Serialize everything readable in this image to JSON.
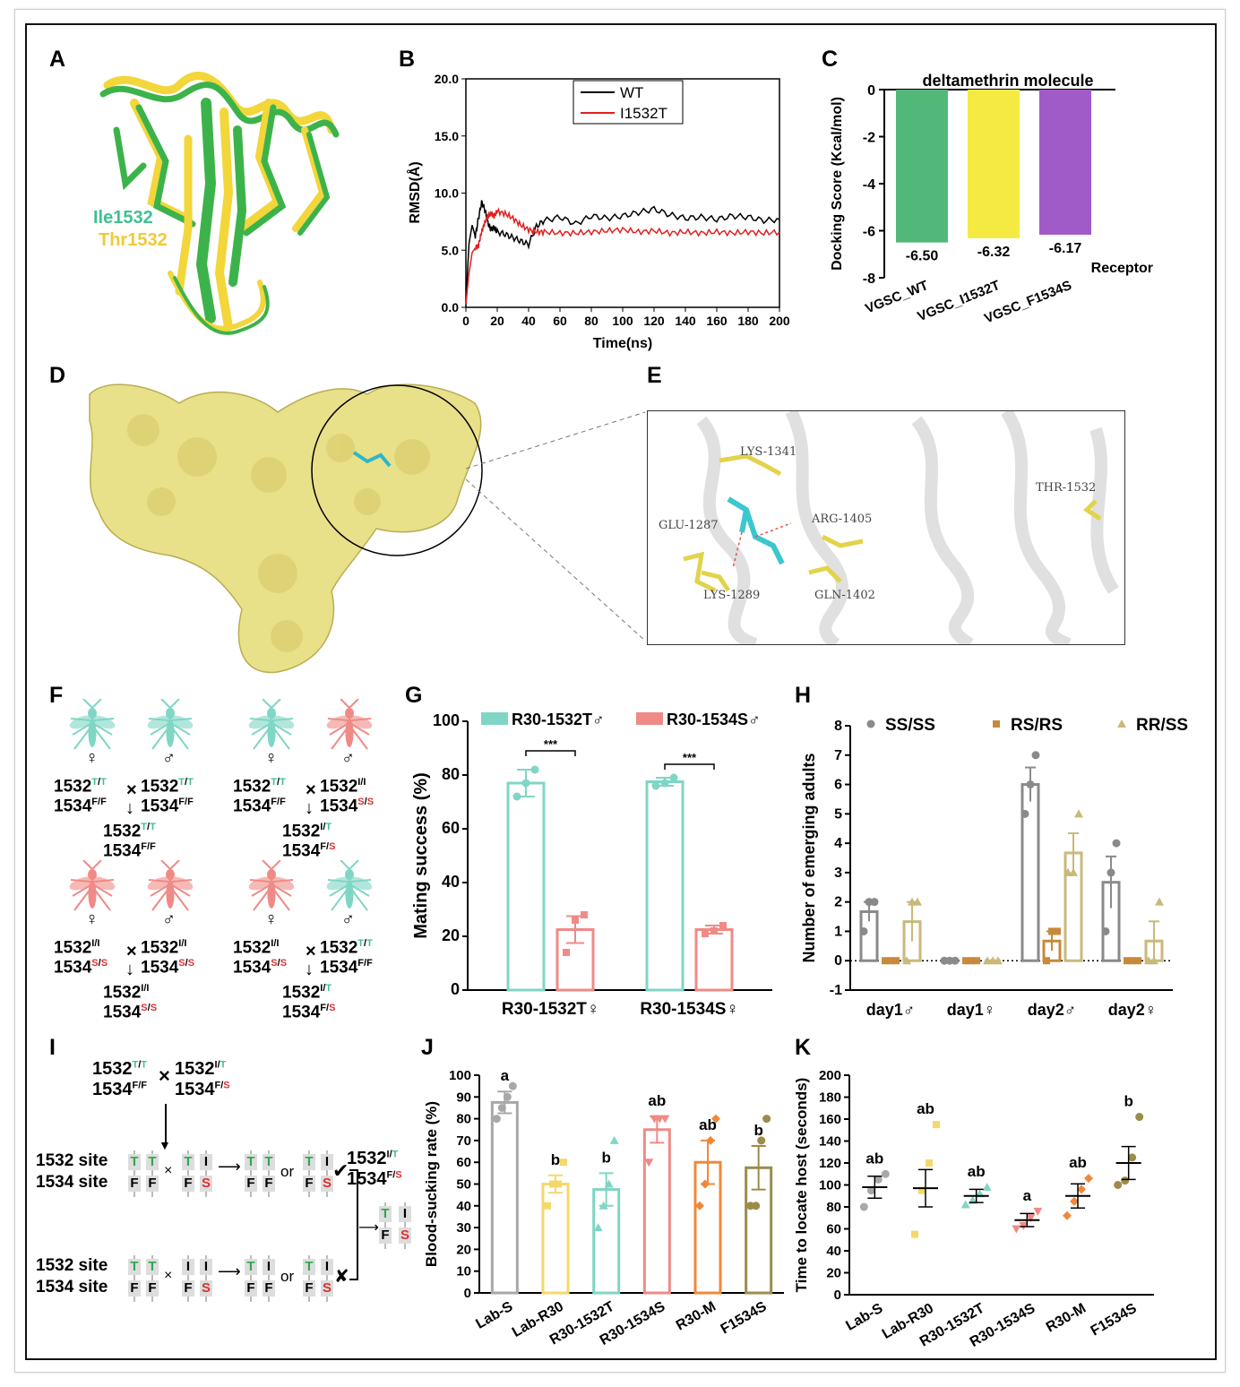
{
  "panel_letters": {
    "A": "A",
    "B": "B",
    "C": "C",
    "D": "D",
    "E": "E",
    "F": "F",
    "G": "G",
    "H": "H",
    "I": "I",
    "J": "J",
    "K": "K"
  },
  "panelA": {
    "label_ile": "Ile1532",
    "label_thr": "Thr1532",
    "colors": {
      "green": "#3cb34a",
      "yellow": "#f2d63a",
      "ile_text": "#3ec28f",
      "thr_text": "#f0c93a"
    }
  },
  "panelD": {
    "surface_color": "#e9e08a"
  },
  "panelE": {
    "residues": {
      "lys1341": "LYS-1341",
      "glu1287": "GLU-1287",
      "arg1405": "ARG-1405",
      "lys1289": "LYS-1289",
      "gln1402": "GLN-1402",
      "thr1532": "THR-1532"
    }
  },
  "panelF": {
    "crosses": [
      {
        "f_top": "1532",
        "f_top_sup": "T/T",
        "f_bot": "1534",
        "f_bot_sup": "F/F",
        "m_top": "1532",
        "m_top_sup": "T/T",
        "m_bot": "1534",
        "m_bot_sup": "F/F",
        "o_top": "1532",
        "o_top_sup": "T/T",
        "o_bot": "1534",
        "o_bot_sup": "F/F"
      },
      {
        "f_top": "1532",
        "f_top_sup": "T/T",
        "f_bot": "1534",
        "f_bot_sup": "F/F",
        "m_top": "1532",
        "m_top_sup": "I/I",
        "m_bot": "1534",
        "m_bot_sup": "S/S",
        "o_top": "1532",
        "o_top_sup": "I/T",
        "o_bot": "1534",
        "o_bot_sup": "F/S"
      },
      {
        "f_top": "1532",
        "f_top_sup": "I/I",
        "f_bot": "1534",
        "f_bot_sup": "S/S",
        "m_top": "1532",
        "m_top_sup": "I/I",
        "m_bot": "1534",
        "m_bot_sup": "S/S",
        "o_top": "1532",
        "o_top_sup": "I/I",
        "o_bot": "1534",
        "o_bot_sup": "S/S"
      },
      {
        "f_top": "1532",
        "f_top_sup": "I/I",
        "f_bot": "1534",
        "f_bot_sup": "S/S",
        "m_top": "1532",
        "m_top_sup": "T/T",
        "m_bot": "1534",
        "m_bot_sup": "F/F",
        "o_top": "1532",
        "o_top_sup": "I/T",
        "o_bot": "1534",
        "o_bot_sup": "F/S"
      }
    ],
    "times": "×",
    "female": "♀",
    "male": "♂",
    "arrow": "↓"
  },
  "panelI": {
    "top_left_top": "1532",
    "top_left_top_sup": "T/T",
    "top_left_bot": "1534",
    "top_left_bot_sup": "F/F",
    "top_right_top": "1532",
    "top_right_top_sup": "I/T",
    "top_right_bot": "1534",
    "top_right_bot_sup": "F/S",
    "times": "×",
    "site1532": "1532 site",
    "site1534": "1534 site",
    "row1_top": [
      "T",
      "T",
      "T",
      "I",
      "T",
      "T",
      "T",
      "I"
    ],
    "row1_bot": [
      "F",
      "F",
      "F",
      "S",
      "F",
      "F",
      "F",
      "S"
    ],
    "row2_top": [
      "T",
      "T",
      "I",
      "I",
      "T",
      "I",
      "T",
      "I"
    ],
    "row2_bot": [
      "F",
      "F",
      "F",
      "S",
      "F",
      "F",
      "F",
      "S"
    ],
    "or": "or",
    "check": "✔",
    "cross": "✘",
    "result_top": "1532",
    "result_top_sup": "I/T",
    "result_bot": "1534",
    "result_bot_sup": "F/S",
    "final_top": [
      "T",
      "I"
    ],
    "final_bot": [
      "F",
      "S"
    ]
  },
  "chart_data": [
    {
      "id": "B",
      "type": "line",
      "xlabel": "Time(ns)",
      "ylabel": "RMSD(Å)",
      "xlim": [
        0,
        200
      ],
      "ylim": [
        0,
        20
      ],
      "x_ticks": [
        "0",
        "20",
        "40",
        "60",
        "80",
        "100",
        "120",
        "140",
        "160",
        "180",
        "200"
      ],
      "y_ticks": [
        "0.0",
        "5.0",
        "10.0",
        "15.0",
        "20.0"
      ],
      "series": [
        {
          "name": "WT",
          "color": "#000000",
          "x": [
            0,
            2,
            4,
            6,
            8,
            10,
            12,
            14,
            16,
            18,
            20,
            25,
            30,
            35,
            40,
            45,
            50,
            60,
            70,
            80,
            90,
            100,
            110,
            120,
            130,
            140,
            150,
            160,
            170,
            180,
            190,
            200
          ],
          "y": [
            0.5,
            5.6,
            7.2,
            6.2,
            7.8,
            9.2,
            8.6,
            7.4,
            6.8,
            7.0,
            6.6,
            6.4,
            6.1,
            5.8,
            5.5,
            7.1,
            7.6,
            7.9,
            7.3,
            8.0,
            7.8,
            8.0,
            8.3,
            8.6,
            8.1,
            7.8,
            7.9,
            7.7,
            8.0,
            7.9,
            7.6,
            7.7
          ]
        },
        {
          "name": "I1532T",
          "color": "#e02020",
          "x": [
            0,
            2,
            4,
            6,
            8,
            10,
            12,
            14,
            16,
            18,
            20,
            25,
            30,
            35,
            40,
            45,
            50,
            60,
            70,
            80,
            90,
            100,
            110,
            120,
            130,
            140,
            150,
            160,
            170,
            180,
            190,
            200
          ],
          "y": [
            0.3,
            3.0,
            4.8,
            5.2,
            5.4,
            6.6,
            7.4,
            8.0,
            8.2,
            8.0,
            8.4,
            8.2,
            7.8,
            7.2,
            6.8,
            6.6,
            6.6,
            6.5,
            6.5,
            6.6,
            6.7,
            6.8,
            6.6,
            6.7,
            6.5,
            6.6,
            6.5,
            6.6,
            6.5,
            6.6,
            6.5,
            6.6
          ]
        }
      ]
    },
    {
      "id": "C",
      "type": "bar",
      "title": "deltamethrin molecule",
      "ylabel": "Docking Score (Kcal/mol)",
      "xlabel": "Receptor",
      "ylim": [
        -8,
        0
      ],
      "y_ticks": [
        "0",
        "-2",
        "-4",
        "-6",
        "-8"
      ],
      "categories": [
        "VGSC_WT",
        "VGSC_I1532T",
        "VGSC_F1534S"
      ],
      "values": [
        -6.5,
        -6.32,
        -6.17
      ],
      "value_labels": [
        "-6.50",
        "-6.32",
        "-6.17"
      ],
      "colors": [
        "#52b87a",
        "#f5ea42",
        "#a05bc8"
      ]
    },
    {
      "id": "G",
      "type": "bar",
      "ylabel": "Mating success (%)",
      "ylim": [
        0,
        100
      ],
      "y_ticks": [
        "0",
        "20",
        "40",
        "60",
        "80",
        "100"
      ],
      "categories": [
        "R30-1532T♀",
        "R30-1534S♀"
      ],
      "series": [
        {
          "name": "R30-1532T♂",
          "color": "#7fd6c4",
          "values": [
            77,
            77.5
          ],
          "err": [
            5,
            1.5
          ],
          "points": [
            [
              72,
              77,
              82
            ],
            [
              76,
              77,
              79
            ]
          ]
        },
        {
          "name": "R30-1534S♂",
          "color": "#f08a86",
          "values": [
            22.5,
            22.5
          ],
          "err": [
            5,
            1.5
          ],
          "points": [
            [
              14,
              26,
              28
            ],
            [
              21,
              22,
              24
            ]
          ]
        }
      ],
      "sig": [
        "***",
        "***"
      ]
    },
    {
      "id": "H",
      "type": "bar",
      "ylabel": "Number of emerging adults",
      "ylim": [
        -1,
        8
      ],
      "y_ticks": [
        "-1",
        "0",
        "1",
        "2",
        "3",
        "4",
        "5",
        "6",
        "7",
        "8"
      ],
      "categories": [
        "day1♂",
        "day1♀",
        "day2♂",
        "day2♀"
      ],
      "series": [
        {
          "name": "SS/SS",
          "color": "#8a8a8a",
          "marker": "circle",
          "values": [
            1.67,
            0,
            6,
            2.67
          ],
          "err": [
            0.33,
            0,
            0.58,
            0.88
          ],
          "points": [
            [
              1,
              2,
              2
            ],
            [
              0,
              0,
              0
            ],
            [
              5,
              6,
              7
            ],
            [
              1,
              3,
              4
            ]
          ]
        },
        {
          "name": "RS/RS",
          "color": "#c8893a",
          "marker": "square",
          "values": [
            0,
            0,
            0.67,
            0
          ],
          "err": [
            0,
            0,
            0.33,
            0
          ],
          "points": [
            [
              0,
              0,
              0
            ],
            [
              0,
              0,
              0
            ],
            [
              0,
              1,
              1
            ],
            [
              0,
              0,
              0
            ]
          ]
        },
        {
          "name": "RR/SS",
          "color": "#c9b97a",
          "marker": "triangle",
          "values": [
            1.33,
            0,
            3.67,
            0.67
          ],
          "err": [
            0.67,
            0,
            0.67,
            0.67
          ],
          "points": [
            [
              0,
              2,
              2
            ],
            [
              0,
              0,
              0
            ],
            [
              3,
              3,
              5
            ],
            [
              0,
              0,
              2
            ]
          ]
        }
      ]
    },
    {
      "id": "J",
      "type": "bar",
      "ylabel": "Blood-sucking rate (%)",
      "ylim": [
        0,
        100
      ],
      "y_ticks": [
        "0",
        "10",
        "20",
        "30",
        "40",
        "50",
        "60",
        "70",
        "80",
        "90",
        "100"
      ],
      "categories": [
        "Lab-S",
        "Lab-R30",
        "R30-1532T",
        "R30-1534S",
        "R30-M",
        "F1534S"
      ],
      "values": [
        87.5,
        50,
        47.5,
        75,
        60,
        57.5
      ],
      "err": [
        5,
        4,
        7.5,
        6,
        10,
        10
      ],
      "letters": [
        "a",
        "b",
        "b",
        "ab",
        "ab",
        "b"
      ],
      "colors": [
        "#a8a8a8",
        "#f5d86a",
        "#7fd6c4",
        "#f08a86",
        "#f0883a",
        "#9c8b4a"
      ],
      "points": [
        [
          80,
          85,
          90,
          95
        ],
        [
          40,
          50,
          50,
          60
        ],
        [
          30,
          40,
          50,
          70
        ],
        [
          60,
          80,
          80,
          80
        ],
        [
          40,
          50,
          70,
          80
        ],
        [
          40,
          40,
          70,
          80
        ]
      ]
    },
    {
      "id": "K",
      "type": "scatter",
      "ylabel": "Time to locate host (seconds)",
      "ylim": [
        0,
        200
      ],
      "y_ticks": [
        "0",
        "20",
        "40",
        "60",
        "80",
        "100",
        "120",
        "140",
        "160",
        "180",
        "200"
      ],
      "categories": [
        "Lab-S",
        "Lab-R30",
        "R30-1532T",
        "R30-1534S",
        "R30-M",
        "F1534S"
      ],
      "means": [
        98,
        97,
        90,
        68,
        90,
        120
      ],
      "err": [
        10,
        17,
        6,
        6,
        11,
        15
      ],
      "letters": [
        "ab",
        "ab",
        "ab",
        "a",
        "ab",
        "b"
      ],
      "colors": [
        "#a8a8a8",
        "#f5d86a",
        "#7fd6c4",
        "#f08a86",
        "#f0883a",
        "#9c8b4a"
      ],
      "points": [
        [
          80,
          95,
          105,
          110
        ],
        [
          55,
          95,
          120,
          155
        ],
        [
          82,
          86,
          92,
          98
        ],
        [
          60,
          63,
          70,
          76
        ],
        [
          72,
          85,
          96,
          106
        ],
        [
          100,
          104,
          125,
          162
        ]
      ]
    }
  ]
}
